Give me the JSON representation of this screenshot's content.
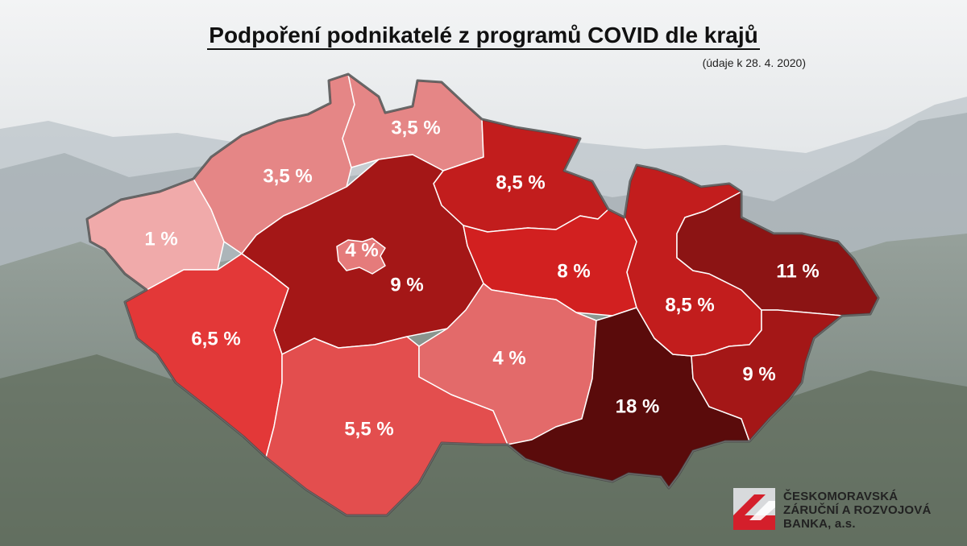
{
  "title": "Podpoření podnikatelé z programů COVID dle krajů",
  "subtitle": "(údaje k 28. 4. 2020)",
  "regions": {
    "karlovarsky": {
      "label": "1 %",
      "color": "#f0aaaa"
    },
    "ustecky": {
      "label": "3,5 %",
      "color": "#e58686"
    },
    "liberecky": {
      "label": "3,5 %",
      "color": "#e58686"
    },
    "kralovehradecky": {
      "label": "8,5 %",
      "color": "#c21d1d"
    },
    "praha": {
      "label": "4 %",
      "color": "#e57b7b"
    },
    "stredocesky": {
      "label": "9 %",
      "color": "#a41717"
    },
    "pardubicky": {
      "label": "8 %",
      "color": "#d22020"
    },
    "plzensky": {
      "label": "6,5 %",
      "color": "#e33838"
    },
    "jihocesky": {
      "label": "5,5 %",
      "color": "#e34e4e"
    },
    "vysocina": {
      "label": "4 %",
      "color": "#e36a6a"
    },
    "jihomoravsky": {
      "label": "18 %",
      "color": "#5a0b0b"
    },
    "olomoucky": {
      "label": "8,5 %",
      "color": "#c21d1d"
    },
    "moravskoslezsky": {
      "label": "11 %",
      "color": "#8c1414"
    },
    "zlinsky": {
      "label": "9 %",
      "color": "#a41717"
    }
  },
  "logo": {
    "line1": "ČESKOMORAVSKÁ",
    "line2": "ZÁRUČNÍ A ROZVOJOVÁ",
    "line3": "BANKA, a.s."
  }
}
